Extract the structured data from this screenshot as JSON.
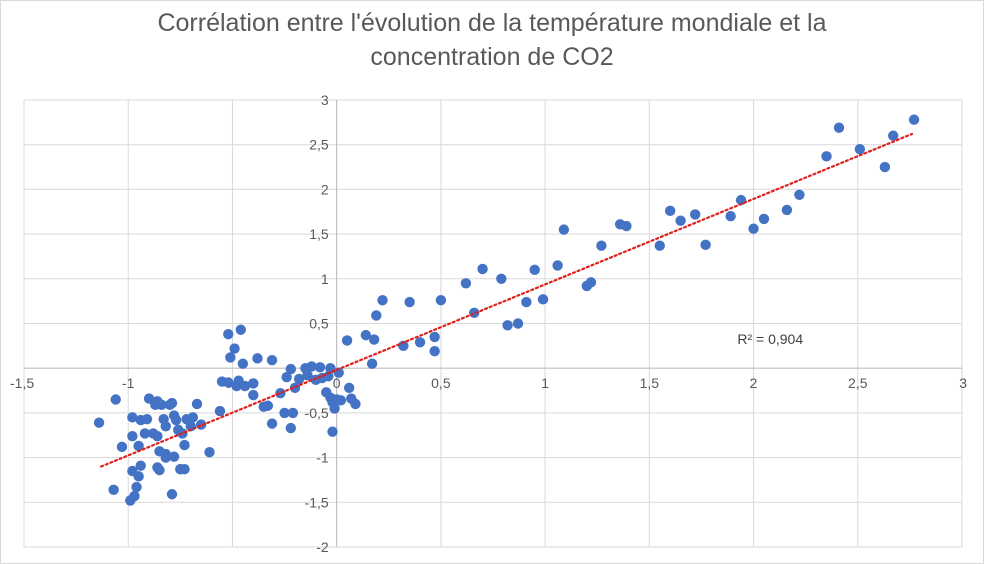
{
  "chart_data": {
    "type": "scatter",
    "title_line1": "Corrélation entre l'évolution de la température mondiale et la",
    "title_line2": "concentration de CO2",
    "xlim": [
      -1.5,
      3
    ],
    "ylim": [
      -2,
      3
    ],
    "x_ticks": [
      -1.5,
      -1,
      -0.5,
      0,
      0.5,
      1,
      1.5,
      2,
      2.5,
      3
    ],
    "x_tick_labels": [
      "-1,5",
      "-1",
      "-0,5",
      "0",
      "0,5",
      "1",
      "1,5",
      "2",
      "2,5",
      "3"
    ],
    "y_ticks": [
      -2,
      -1.5,
      -1,
      -0.5,
      0,
      0.5,
      1,
      1.5,
      2,
      2.5,
      3
    ],
    "y_tick_labels": [
      "-2",
      "-1,5",
      "-1",
      "-0,5",
      "",
      "0,5",
      "1",
      "1,5",
      "2",
      "2,5",
      "3"
    ],
    "grid": true,
    "series_color": "#4472c4",
    "trendline": {
      "type": "linear",
      "from": [
        -1.13,
        -1.1
      ],
      "to": [
        2.76,
        2.62
      ],
      "color": "#e0201c",
      "label": "R² = 0,904",
      "label_at": [
        2.08,
        0.27
      ]
    },
    "points": [
      [
        -1.14,
        -0.61
      ],
      [
        -1.06,
        -0.35
      ],
      [
        -1.03,
        -0.88
      ],
      [
        -0.98,
        -0.55
      ],
      [
        -0.98,
        -0.76
      ],
      [
        -0.95,
        -0.87
      ],
      [
        -0.94,
        -0.58
      ],
      [
        -0.92,
        -0.73
      ],
      [
        -0.91,
        -0.57
      ],
      [
        -0.9,
        -0.34
      ],
      [
        -0.88,
        -0.73
      ],
      [
        -0.87,
        -0.41
      ],
      [
        -0.86,
        -0.37
      ],
      [
        -0.86,
        -0.76
      ],
      [
        -0.85,
        -0.93
      ],
      [
        -0.84,
        -0.41
      ],
      [
        -0.83,
        -0.57
      ],
      [
        -0.82,
        -0.65
      ],
      [
        -0.82,
        -0.96
      ],
      [
        -0.8,
        -0.41
      ],
      [
        -0.79,
        -0.39
      ],
      [
        -0.78,
        -0.53
      ],
      [
        -0.78,
        -0.99
      ],
      [
        -0.77,
        -0.58
      ],
      [
        -0.76,
        -0.69
      ],
      [
        -0.75,
        -1.13
      ],
      [
        -0.74,
        -0.73
      ],
      [
        -0.73,
        -0.86
      ],
      [
        -0.72,
        -0.57
      ],
      [
        -0.7,
        -0.65
      ],
      [
        -0.69,
        -0.55
      ],
      [
        -0.67,
        -0.4
      ],
      [
        -0.65,
        -0.63
      ],
      [
        -1.07,
        -1.36
      ],
      [
        -0.99,
        -1.48
      ],
      [
        -0.97,
        -1.43
      ],
      [
        -0.96,
        -1.33
      ],
      [
        -0.95,
        -1.21
      ],
      [
        -0.98,
        -1.15
      ],
      [
        -0.94,
        -1.09
      ],
      [
        -0.86,
        -1.11
      ],
      [
        -0.85,
        -1.14
      ],
      [
        -0.82,
        -1.0
      ],
      [
        -0.79,
        -1.41
      ],
      [
        -0.75,
        -1.13
      ],
      [
        -0.73,
        -1.13
      ],
      [
        -0.61,
        -0.94
      ],
      [
        -0.55,
        -0.15
      ],
      [
        -0.52,
        0.38
      ],
      [
        -0.51,
        0.12
      ],
      [
        -0.49,
        0.22
      ],
      [
        -0.48,
        -0.2
      ],
      [
        -0.47,
        -0.14
      ],
      [
        -0.46,
        0.43
      ],
      [
        -0.45,
        0.05
      ],
      [
        -0.52,
        -0.16
      ],
      [
        -0.56,
        -0.48
      ],
      [
        -0.44,
        -0.2
      ],
      [
        -0.38,
        0.11
      ],
      [
        -0.4,
        -0.17
      ],
      [
        -0.4,
        -0.3
      ],
      [
        -0.35,
        -0.43
      ],
      [
        -0.33,
        -0.42
      ],
      [
        -0.31,
        0.09
      ],
      [
        -0.31,
        -0.62
      ],
      [
        -0.27,
        -0.28
      ],
      [
        -0.25,
        -0.5
      ],
      [
        -0.24,
        -0.1
      ],
      [
        -0.22,
        -0.67
      ],
      [
        -0.21,
        -0.5
      ],
      [
        -0.2,
        -0.22
      ],
      [
        -0.18,
        -0.12
      ],
      [
        -0.15,
        0.0
      ],
      [
        -0.14,
        -0.08
      ],
      [
        -0.22,
        -0.01
      ],
      [
        -0.12,
        0.02
      ],
      [
        -0.1,
        -0.13
      ],
      [
        -0.08,
        0.01
      ],
      [
        -0.07,
        -0.11
      ],
      [
        -0.05,
        -0.27
      ],
      [
        -0.03,
        -0.33
      ],
      [
        -0.02,
        -0.38
      ],
      [
        -0.01,
        -0.45
      ],
      [
        0.0,
        -0.35
      ],
      [
        -0.02,
        -0.71
      ],
      [
        -0.04,
        -0.09
      ],
      [
        -0.03,
        0.0
      ],
      [
        0.01,
        -0.05
      ],
      [
        0.02,
        -0.36
      ],
      [
        0.06,
        -0.22
      ],
      [
        0.05,
        0.31
      ],
      [
        0.07,
        -0.34
      ],
      [
        0.09,
        -0.4
      ],
      [
        0.14,
        0.37
      ],
      [
        0.17,
        0.05
      ],
      [
        0.18,
        0.32
      ],
      [
        0.19,
        0.59
      ],
      [
        0.22,
        0.76
      ],
      [
        0.32,
        0.25
      ],
      [
        0.35,
        0.74
      ],
      [
        0.4,
        0.29
      ],
      [
        0.47,
        0.19
      ],
      [
        0.47,
        0.35
      ],
      [
        0.5,
        0.76
      ],
      [
        0.62,
        0.95
      ],
      [
        0.66,
        0.62
      ],
      [
        0.7,
        1.11
      ],
      [
        0.79,
        1.0
      ],
      [
        0.82,
        0.48
      ],
      [
        0.87,
        0.5
      ],
      [
        0.91,
        0.74
      ],
      [
        0.95,
        1.1
      ],
      [
        0.99,
        0.77
      ],
      [
        1.06,
        1.15
      ],
      [
        1.09,
        1.55
      ],
      [
        1.2,
        0.92
      ],
      [
        1.22,
        0.96
      ],
      [
        1.27,
        1.37
      ],
      [
        1.36,
        1.61
      ],
      [
        1.39,
        1.59
      ],
      [
        1.55,
        1.37
      ],
      [
        1.6,
        1.76
      ],
      [
        1.65,
        1.65
      ],
      [
        1.72,
        1.72
      ],
      [
        1.77,
        1.38
      ],
      [
        1.89,
        1.7
      ],
      [
        1.94,
        1.88
      ],
      [
        2.0,
        1.56
      ],
      [
        2.05,
        1.67
      ],
      [
        2.16,
        1.77
      ],
      [
        2.22,
        1.94
      ],
      [
        2.35,
        2.37
      ],
      [
        2.41,
        2.69
      ],
      [
        2.51,
        2.45
      ],
      [
        2.63,
        2.25
      ],
      [
        2.67,
        2.6
      ],
      [
        2.77,
        2.78
      ]
    ]
  }
}
